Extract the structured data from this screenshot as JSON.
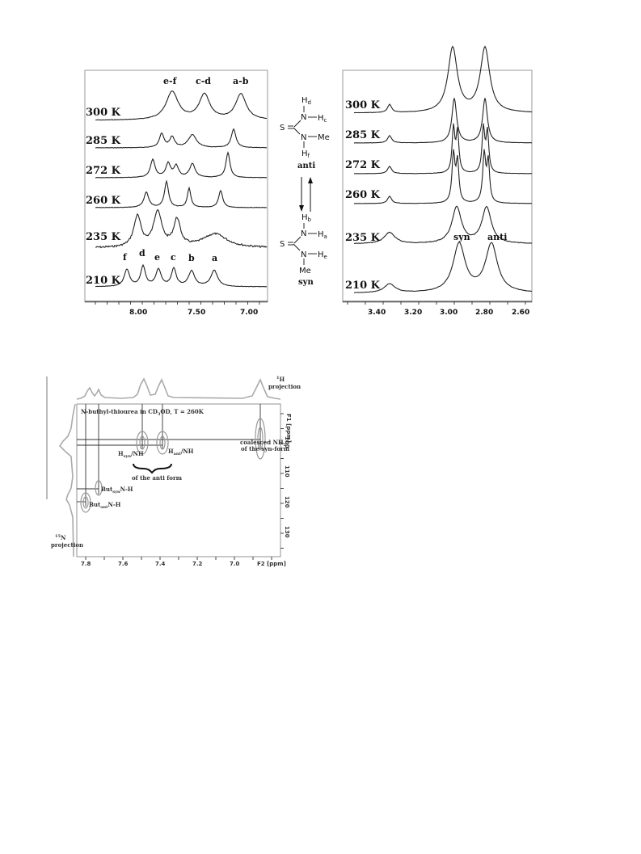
{
  "left_panel": {
    "peak_group_labels": [
      "e-f",
      "c-d",
      "a-b"
    ],
    "peak_labels_210": [
      "f",
      "d",
      "e",
      "c",
      "b",
      "a"
    ],
    "temperatures": [
      "300 K",
      "285 K",
      "272 K",
      "260 K",
      "235 K",
      "210 K"
    ],
    "x_ticks": [
      "8.00",
      "7.50",
      "7.00"
    ]
  },
  "right_panel": {
    "temperatures": [
      "300 K",
      "285 K",
      "272 K",
      "260 K",
      "235 K",
      "210 K"
    ],
    "x_ticks": [
      "3.40",
      "3.20",
      "3.00",
      "2.80",
      "2.60"
    ],
    "syn_label": "syn",
    "anti_label": "anti"
  },
  "structures": {
    "anti": {
      "atoms": [
        "S",
        "N",
        "N",
        "Me"
      ],
      "h_labels": [
        "H",
        "d",
        "H",
        "c",
        "H",
        "f"
      ],
      "name": "anti"
    },
    "syn": {
      "atoms": [
        "S",
        "N",
        "N",
        "Me"
      ],
      "h_labels": [
        "H",
        "b",
        "H",
        "a",
        "H",
        "e"
      ],
      "name": "syn"
    }
  },
  "hsqc": {
    "title": "N-buthyl-thiourea in CD",
    "title_sub": "3",
    "title_rest": "OD, T = 260K",
    "h_projection": [
      "1",
      "H",
      "projection"
    ],
    "n_projection": [
      "15",
      "N",
      "projection"
    ],
    "f1_label": "F1 [ppm]",
    "f2_label": "F2 [ppm]",
    "y_ticks": [
      "100",
      "110",
      "120",
      "130"
    ],
    "x_ticks": [
      "7.8",
      "7.6",
      "7.4",
      "7.2",
      "7.0",
      "F2 [ppm]"
    ],
    "annotations": {
      "hsyn": "H",
      "hsyn_sub": "syn",
      "hsyn_rest": "/NH",
      "hant": "H",
      "hant_sub": "ant",
      "hant_rest": "/NH",
      "anti_form": "of the anti form",
      "coalesced_1": "coalesced NH",
      "coalesced_1_sub": "2",
      "coalesced_2": "of the syn-form",
      "but_syn": "But",
      "but_syn_sub": "syn",
      "but_syn_rest": "N-H",
      "but_ant": "But",
      "but_ant_sub": "ant",
      "but_ant_rest": "N-H"
    }
  }
}
